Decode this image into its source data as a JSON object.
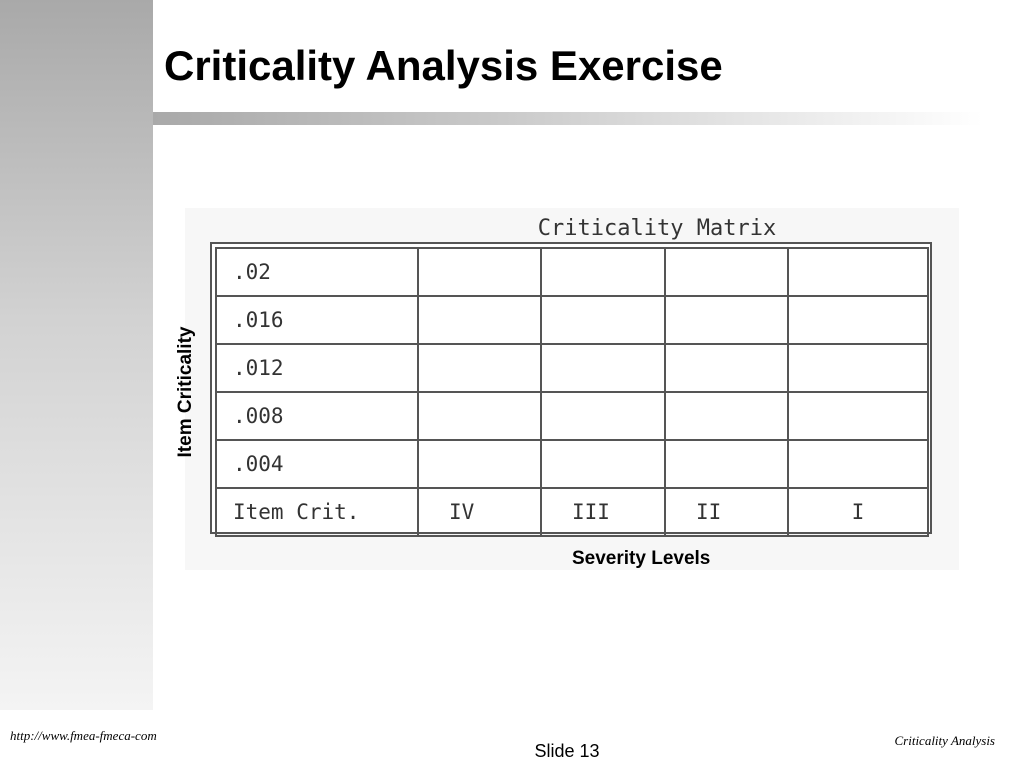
{
  "slide": {
    "title": "Criticality Analysis Exercise"
  },
  "matrix": {
    "title": "Criticality Matrix",
    "rows": [
      ".02",
      ".016",
      ".012",
      ".008",
      ".004"
    ],
    "footer_label": "Item Crit.",
    "severity_levels": [
      "IV",
      "III",
      "II",
      "I"
    ],
    "y_axis_label": "Item Criticality",
    "x_axis_label": "Severity Levels"
  },
  "footer": {
    "url": "http://www.fmea-fmeca-com",
    "slide_number": "Slide 13",
    "topic": "Criticality Analysis"
  },
  "colors": {
    "gradient_dark": "#a9a9a9",
    "grid_lines": "#555555"
  }
}
